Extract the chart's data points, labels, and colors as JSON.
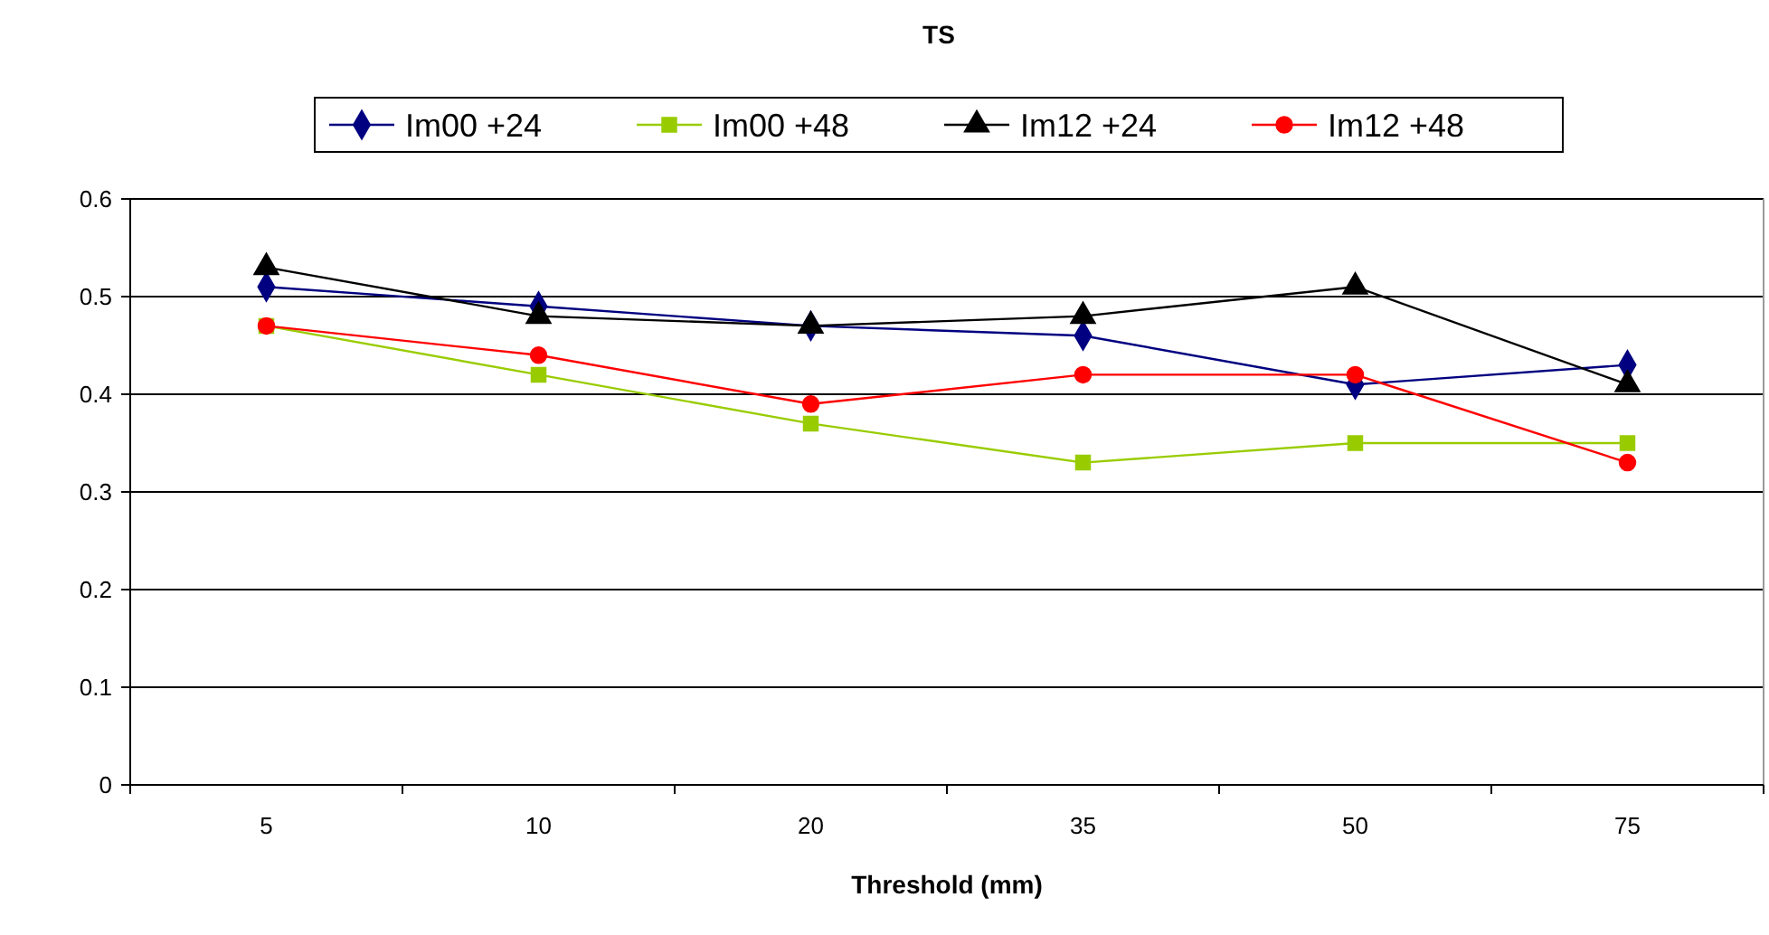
{
  "chart_data": {
    "type": "line",
    "title": "TS",
    "xlabel": "Threshold (mm)",
    "categories": [
      "5",
      "10",
      "20",
      "35",
      "50",
      "75"
    ],
    "series": [
      {
        "name": "Im00 +24",
        "color": "#000080",
        "marker": "diamond",
        "values": [
          0.51,
          0.49,
          0.47,
          0.46,
          0.41,
          0.43
        ]
      },
      {
        "name": "Im00 +48",
        "color": "#99cc00",
        "marker": "square",
        "values": [
          0.47,
          0.42,
          0.37,
          0.33,
          0.35,
          0.35
        ]
      },
      {
        "name": "Im12 +24",
        "color": "#000000",
        "marker": "triangle",
        "values": [
          0.53,
          0.48,
          0.47,
          0.48,
          0.51,
          0.41
        ]
      },
      {
        "name": "Im12 +48",
        "color": "#ff0000",
        "marker": "circle",
        "values": [
          0.47,
          0.44,
          0.39,
          0.42,
          0.42,
          0.33
        ]
      }
    ],
    "ylim": [
      0,
      0.6
    ],
    "yticks": [
      0,
      0.1,
      0.2,
      0.3,
      0.4,
      0.5,
      0.6
    ],
    "grid": "y",
    "legend": "top"
  }
}
